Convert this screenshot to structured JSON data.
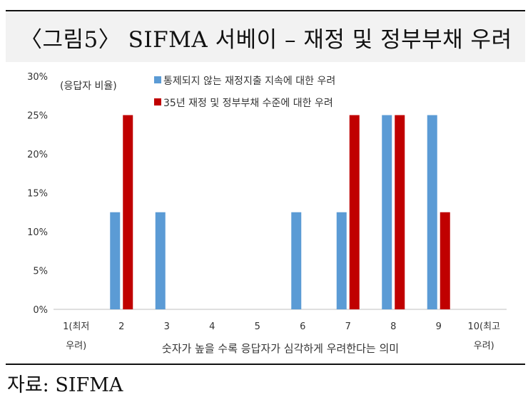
{
  "title": "〈그림5〉 SIFMA 서베이 – 재정 및 정부부채 우려",
  "source": "자료: SIFMA",
  "colors": {
    "series1": "#5b9bd5",
    "series2": "#c00000",
    "axis": "#bfbfbf",
    "text": "#333333"
  },
  "chart_data": {
    "type": "bar",
    "ylabel": "(응답자 비율)",
    "xlabel": "숫자가 높을 수록 응답자가 심각하게 우려한다는 의미",
    "categories": [
      "1(최저 우려)",
      "2",
      "3",
      "4",
      "5",
      "6",
      "7",
      "8",
      "9",
      "10(최고 우려)"
    ],
    "category_lines": [
      [
        "1(최저",
        "우려)"
      ],
      [
        "2"
      ],
      [
        "3"
      ],
      [
        "4"
      ],
      [
        "5"
      ],
      [
        "6"
      ],
      [
        "7"
      ],
      [
        "8"
      ],
      [
        "9"
      ],
      [
        "10(최고",
        "우려)"
      ]
    ],
    "ylim": [
      0,
      30
    ],
    "yticks": [
      0,
      5,
      10,
      15,
      20,
      25,
      30
    ],
    "ytick_labels": [
      "0%",
      "5%",
      "10%",
      "15%",
      "20%",
      "25%",
      "30%"
    ],
    "grid": false,
    "legend_position": "top-left",
    "series": [
      {
        "name": "통제되지 않는 재정지출 지속에 대한 우려",
        "values": [
          0,
          12.5,
          12.5,
          0,
          0,
          12.5,
          12.5,
          25,
          25,
          0
        ]
      },
      {
        "name": "35년 재정 및 정부부채 수준에 대한 우려",
        "values": [
          0,
          25,
          0,
          0,
          0,
          0,
          25,
          25,
          12.5,
          0
        ]
      }
    ]
  }
}
